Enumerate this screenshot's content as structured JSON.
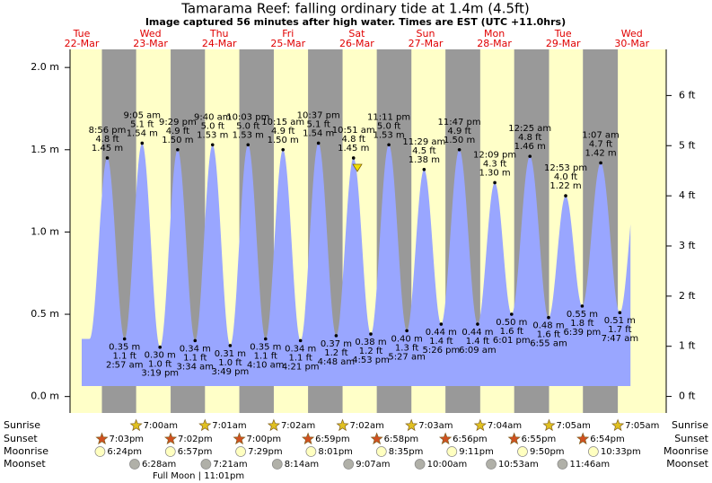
{
  "chart_data": {
    "type": "tide",
    "title": "Tamarama Reef: falling  ordinary tide at 1.4m (4.5ft)",
    "subtitle": "Image captured 56 minutes after high water. Times are EST (UTC +11.0hrs)",
    "ylim": [
      -0.1,
      2.11
    ],
    "y2lim": [
      -0.33,
      6.92
    ],
    "yticks": [
      {
        "value": 0,
        "label": "0.0 m"
      },
      {
        "value": 0.5,
        "label": "0.5 m"
      },
      {
        "value": 1,
        "label": "1.0 m"
      },
      {
        "value": 1.5,
        "label": "1.5 m"
      },
      {
        "value": 2,
        "label": "2.0 m"
      }
    ],
    "y2ticks": [
      {
        "value": 0,
        "label": "0 ft"
      },
      {
        "value": 1,
        "label": "1 ft"
      },
      {
        "value": 2,
        "label": "2 ft"
      },
      {
        "value": 3,
        "label": "3 ft"
      },
      {
        "value": 4,
        "label": "4 ft"
      },
      {
        "value": 5,
        "label": "5 ft"
      },
      {
        "value": 6,
        "label": "6 ft"
      }
    ],
    "row_labels": [
      "Sunrise",
      "Sunset",
      "Moonrise",
      "Moonset"
    ],
    "moon_phase": "Full Moon | 11:01pm",
    "days": [
      {
        "name": "Tue",
        "date": "22-Mar",
        "sunset": "7:03pm",
        "moonrise": "6:24pm",
        "tides": [
          {
            "time": "8:56 pm",
            "ft_label": "4.8 ft",
            "m": 1.45,
            "m_label": "1.45 m"
          }
        ]
      },
      {
        "name": "Wed",
        "date": "23-Mar",
        "sunrise": "7:00am",
        "sunset": "7:02pm",
        "moonrise": "6:57pm",
        "moonset": "6:28am",
        "tides": [
          {
            "time": "2:57 am",
            "ft_label": "1.1 ft",
            "m": 0.35,
            "m_label": "0.35 m"
          },
          {
            "time": "9:05 am",
            "ft_label": "5.1 ft",
            "m": 1.54,
            "m_label": "1.54 m"
          },
          {
            "time": "3:19 pm",
            "ft_label": "1.0 ft",
            "m": 0.3,
            "m_label": "0.30 m"
          },
          {
            "time": "9:29 pm",
            "ft_label": "4.9 ft",
            "m": 1.5,
            "m_label": "1.50 m"
          }
        ]
      },
      {
        "name": "Thu",
        "date": "24-Mar",
        "sunrise": "7:01am",
        "sunset": "7:00pm",
        "moonrise": "7:29pm",
        "moonset": "7:21am",
        "tides": [
          {
            "time": "3:34 am",
            "ft_label": "1.1 ft",
            "m": 0.34,
            "m_label": "0.34 m"
          },
          {
            "time": "9:40 am",
            "ft_label": "5.0 ft",
            "m": 1.53,
            "m_label": "1.53 m"
          },
          {
            "time": "3:49 pm",
            "ft_label": "1.0 ft",
            "m": 0.31,
            "m_label": "0.31 m"
          },
          {
            "time": "10:03 pm",
            "ft_label": "5.0 ft",
            "m": 1.53,
            "m_label": "1.53 m"
          }
        ]
      },
      {
        "name": "Fri",
        "date": "25-Mar",
        "sunrise": "7:02am",
        "sunset": "6:59pm",
        "moonrise": "8:01pm",
        "moonset": "8:14am",
        "tides": [
          {
            "time": "4:10 am",
            "ft_label": "1.1 ft",
            "m": 0.35,
            "m_label": "0.35 m"
          },
          {
            "time": "10:15 am",
            "ft_label": "4.9 ft",
            "m": 1.5,
            "m_label": "1.50 m"
          },
          {
            "time": "4:21 pm",
            "ft_label": "1.1 ft",
            "m": 0.34,
            "m_label": "0.34 m"
          },
          {
            "time": "10:37 pm",
            "ft_label": "5.1 ft",
            "m": 1.54,
            "m_label": "1.54 m"
          }
        ]
      },
      {
        "name": "Sat",
        "date": "26-Mar",
        "sunrise": "7:02am",
        "sunset": "6:58pm",
        "moonrise": "8:35pm",
        "moonset": "9:07am",
        "tides": [
          {
            "time": "4:48 am",
            "ft_label": "1.2 ft",
            "m": 0.37,
            "m_label": "0.37 m"
          },
          {
            "time": "10:51 am",
            "ft_label": "4.8 ft",
            "m": 1.45,
            "m_label": "1.45 m"
          },
          {
            "time": "4:53 pm",
            "ft_label": "1.2 ft",
            "m": 0.38,
            "m_label": "0.38 m"
          },
          {
            "time": "11:11 pm",
            "ft_label": "5.0 ft",
            "m": 1.53,
            "m_label": "1.53 m"
          }
        ]
      },
      {
        "name": "Sun",
        "date": "27-Mar",
        "sunrise": "7:03am",
        "sunset": "6:56pm",
        "moonrise": "9:11pm",
        "moonset": "10:00am",
        "tides": [
          {
            "time": "5:27 am",
            "ft_label": "1.3 ft",
            "m": 0.4,
            "m_label": "0.40 m"
          },
          {
            "time": "11:29 am",
            "ft_label": "4.5 ft",
            "m": 1.38,
            "m_label": "1.38 m"
          },
          {
            "time": "5:26 pm",
            "ft_label": "1.4 ft",
            "m": 0.44,
            "m_label": "0.44 m"
          },
          {
            "time": "11:47 pm",
            "ft_label": "4.9 ft",
            "m": 1.5,
            "m_label": "1.50 m"
          }
        ]
      },
      {
        "name": "Mon",
        "date": "28-Mar",
        "sunrise": "7:04am",
        "sunset": "6:55pm",
        "moonrise": "9:50pm",
        "moonset": "10:53am",
        "tides": [
          {
            "time": "6:09 am",
            "ft_label": "1.4 ft",
            "m": 0.44,
            "m_label": "0.44 m"
          },
          {
            "time": "12:09 pm",
            "ft_label": "4.3 ft",
            "m": 1.3,
            "m_label": "1.30 m"
          },
          {
            "time": "6:01 pm",
            "ft_label": "1.6 ft",
            "m": 0.5,
            "m_label": "0.50 m"
          }
        ]
      },
      {
        "name": "Tue",
        "date": "29-Mar",
        "sunrise": "7:05am",
        "sunset": "6:54pm",
        "moonrise": "10:33pm",
        "moonset": "11:46am",
        "tides": [
          {
            "time": "12:25 am",
            "ft_label": "4.8 ft",
            "m": 1.46,
            "m_label": "1.46 m"
          },
          {
            "time": "6:55 am",
            "ft_label": "1.6 ft",
            "m": 0.48,
            "m_label": "0.48 m"
          },
          {
            "time": "12:53 pm",
            "ft_label": "4.0 ft",
            "m": 1.22,
            "m_label": "1.22 m"
          },
          {
            "time": "6:39 pm",
            "ft_label": "1.8 ft",
            "m": 0.55,
            "m_label": "0.55 m"
          }
        ]
      },
      {
        "name": "Wed",
        "date": "30-Mar",
        "sunrise": "7:05am",
        "tides": [
          {
            "time": "1:07 am",
            "ft_label": "4.7 ft",
            "m": 1.42,
            "m_label": "1.42 m"
          },
          {
            "time": "7:47 am",
            "ft_label": "1.7 ft",
            "m": 0.51,
            "m_label": "0.51 m"
          }
        ]
      }
    ]
  }
}
